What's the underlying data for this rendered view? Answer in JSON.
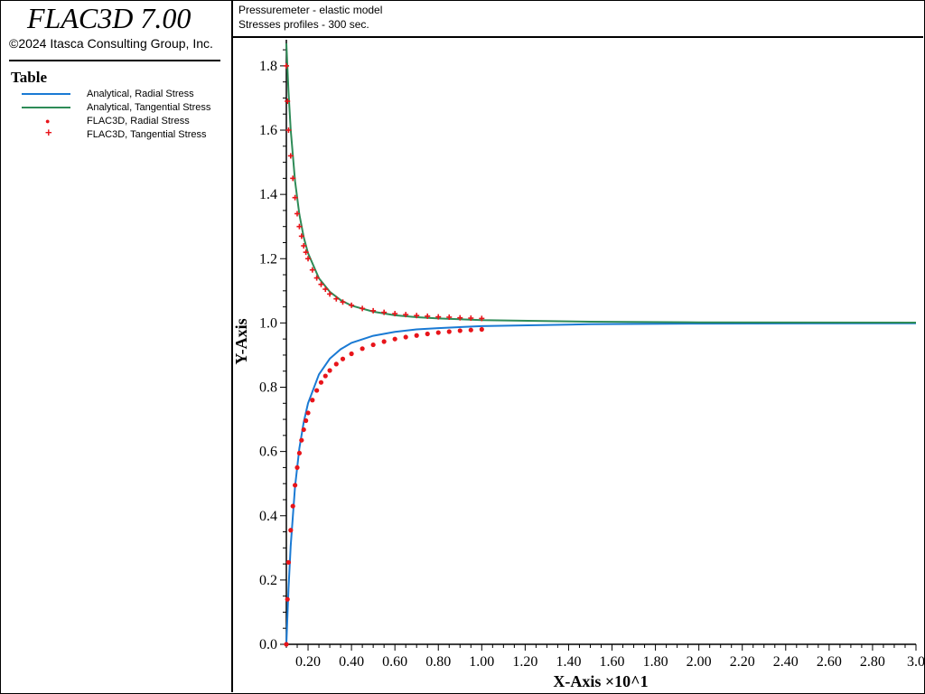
{
  "app": {
    "title": "FLAC3D 7.00",
    "copyright": "©2024 Itasca Consulting Group, Inc."
  },
  "header": {
    "line1": "Pressuremeter - elastic model",
    "line2": "Stresses profiles - 300 sec."
  },
  "legend": {
    "title": "Table",
    "items": [
      {
        "label": "Analytical, Radial Stress",
        "kind": "line",
        "color": "#1a7ad4"
      },
      {
        "label": "Analytical, Tangential Stress",
        "kind": "line",
        "color": "#2e8b57"
      },
      {
        "label": "FLAC3D, Radial Stress",
        "kind": "marker",
        "glyph": "●",
        "color": "#e8141a"
      },
      {
        "label": "FLAC3D, Tangential Stress",
        "kind": "marker",
        "glyph": "+",
        "color": "#e8141a"
      }
    ]
  },
  "colors": {
    "analytical_radial": "#1a7ad4",
    "analytical_tangential": "#2e8b57",
    "flac3d": "#e8141a"
  },
  "chart_data": {
    "type": "line",
    "xlabel": "X-Axis ×10^1",
    "ylabel": "Y-Axis",
    "xlim": [
      0.1,
      3.0
    ],
    "ylim": [
      0.0,
      1.87
    ],
    "xticks": [
      "0.20",
      "0.40",
      "0.60",
      "0.80",
      "1.00",
      "1.20",
      "1.40",
      "1.60",
      "1.80",
      "2.00",
      "2.20",
      "2.40",
      "2.60",
      "2.80",
      "3.0"
    ],
    "yticks": [
      "0.0",
      "0.2",
      "0.4",
      "0.6",
      "0.8",
      "1.0",
      "1.2",
      "1.4",
      "1.6",
      "1.8"
    ],
    "series": [
      {
        "name": "Analytical, Radial Stress",
        "style": "line",
        "x": [
          0.1,
          0.11,
          0.12,
          0.14,
          0.16,
          0.18,
          0.2,
          0.25,
          0.3,
          0.35,
          0.4,
          0.5,
          0.6,
          0.7,
          0.8,
          1.0,
          1.5,
          2.0,
          3.0
        ],
        "y": [
          0.0,
          0.174,
          0.306,
          0.49,
          0.61,
          0.691,
          0.75,
          0.84,
          0.889,
          0.918,
          0.938,
          0.96,
          0.972,
          0.98,
          0.984,
          0.99,
          0.996,
          0.998,
          0.999
        ]
      },
      {
        "name": "Analytical, Tangential Stress",
        "style": "line",
        "x": [
          0.1,
          0.11,
          0.12,
          0.14,
          0.16,
          0.18,
          0.2,
          0.25,
          0.3,
          0.35,
          0.4,
          0.5,
          0.6,
          0.7,
          0.8,
          1.0,
          1.5,
          2.0,
          3.0
        ],
        "y": [
          1.87,
          1.719,
          1.602,
          1.442,
          1.338,
          1.267,
          1.217,
          1.139,
          1.097,
          1.071,
          1.054,
          1.035,
          1.024,
          1.018,
          1.014,
          1.009,
          1.004,
          1.002,
          1.001
        ]
      },
      {
        "name": "FLAC3D, Radial Stress",
        "style": "marker",
        "x": [
          0.1,
          0.105,
          0.11,
          0.12,
          0.13,
          0.14,
          0.15,
          0.16,
          0.17,
          0.18,
          0.19,
          0.2,
          0.22,
          0.24,
          0.26,
          0.28,
          0.3,
          0.33,
          0.36,
          0.4,
          0.45,
          0.5,
          0.55,
          0.6,
          0.65,
          0.7,
          0.75,
          0.8,
          0.85,
          0.9,
          0.95,
          1.0
        ],
        "y": [
          0.0,
          0.14,
          0.255,
          0.355,
          0.43,
          0.495,
          0.55,
          0.595,
          0.635,
          0.668,
          0.696,
          0.72,
          0.76,
          0.79,
          0.815,
          0.835,
          0.852,
          0.872,
          0.888,
          0.904,
          0.92,
          0.932,
          0.942,
          0.95,
          0.956,
          0.961,
          0.966,
          0.97,
          0.973,
          0.976,
          0.978,
          0.98
        ]
      },
      {
        "name": "FLAC3D, Tangential Stress",
        "style": "plus",
        "x": [
          0.1,
          0.105,
          0.11,
          0.12,
          0.13,
          0.14,
          0.15,
          0.16,
          0.17,
          0.18,
          0.19,
          0.2,
          0.22,
          0.24,
          0.26,
          0.28,
          0.3,
          0.33,
          0.36,
          0.4,
          0.45,
          0.5,
          0.55,
          0.6,
          0.65,
          0.7,
          0.75,
          0.8,
          0.85,
          0.9,
          0.95,
          1.0
        ],
        "y": [
          1.8,
          1.69,
          1.6,
          1.52,
          1.45,
          1.39,
          1.34,
          1.3,
          1.27,
          1.24,
          1.22,
          1.2,
          1.165,
          1.14,
          1.12,
          1.105,
          1.09,
          1.075,
          1.065,
          1.055,
          1.045,
          1.038,
          1.033,
          1.029,
          1.026,
          1.023,
          1.021,
          1.019,
          1.018,
          1.016,
          1.015,
          1.014
        ]
      }
    ]
  }
}
